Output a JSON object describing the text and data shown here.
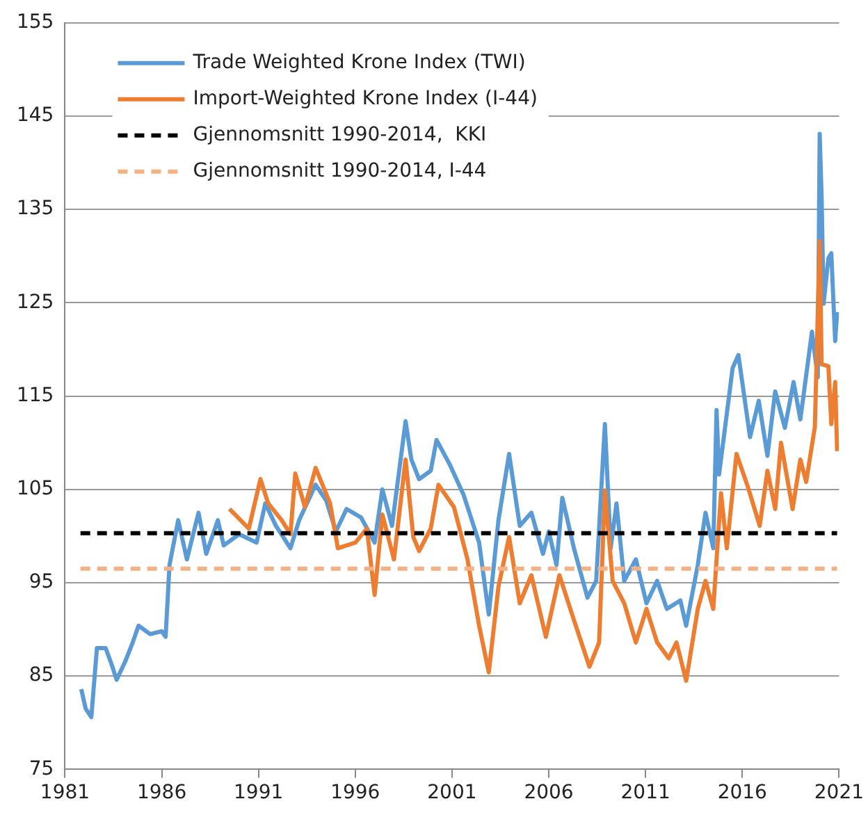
{
  "chart_data": {
    "type": "line",
    "xlim": [
      1981,
      2021
    ],
    "xticks": [
      1981,
      1986,
      1991,
      1996,
      2001,
      2006,
      2011,
      2016,
      2021
    ],
    "ylim": [
      75,
      155
    ],
    "yticks": [
      75,
      85,
      95,
      105,
      115,
      125,
      135,
      145,
      155
    ],
    "grid": "y",
    "legend": "top left",
    "marker": "none",
    "series": [
      {
        "name": "Trade Weighted Krone Index (TWI)",
        "color": "#5b9bd5",
        "line_style": "solid",
        "x": [
          1981.84,
          1982.07,
          1982.36,
          1982.65,
          1983.1,
          1983.4,
          1983.67,
          1984.1,
          1984.5,
          1984.8,
          1985.4,
          1986.0,
          1986.2,
          1986.4,
          1986.85,
          1987.3,
          1987.9,
          1988.3,
          1988.9,
          1989.2,
          1990.0,
          1990.9,
          1991.35,
          1991.9,
          1992.65,
          1993.1,
          1993.95,
          1994.5,
          1995.0,
          1995.55,
          1996.3,
          1997.0,
          1997.4,
          1997.9,
          1998.6,
          1998.9,
          1999.3,
          1999.9,
          2000.2,
          2000.9,
          2001.6,
          2002.4,
          2002.9,
          2003.4,
          2003.95,
          2004.5,
          2005.1,
          2005.7,
          2006.0,
          2006.4,
          2006.7,
          2007.3,
          2008.0,
          2008.45,
          2008.9,
          2009.2,
          2009.5,
          2009.9,
          2010.5,
          2011.05,
          2011.6,
          2012.1,
          2012.8,
          2013.1,
          2013.7,
          2014.1,
          2014.5,
          2014.67,
          2014.8,
          2015.5,
          2015.8,
          2016.4,
          2016.85,
          2017.3,
          2017.7,
          2018.2,
          2018.65,
          2019.0,
          2019.6,
          2019.9,
          2020.0,
          2020.1,
          2020.2,
          2020.45,
          2020.6,
          2020.8,
          2020.9
        ],
        "values": [
          83.6,
          81.5,
          80.6,
          88.0,
          88.0,
          86.3,
          84.6,
          86.5,
          88.6,
          90.4,
          89.5,
          89.8,
          89.2,
          96.9,
          101.7,
          97.5,
          102.5,
          98.1,
          101.7,
          99.0,
          100.2,
          99.3,
          103.5,
          101.1,
          98.7,
          101.7,
          105.5,
          103.8,
          100.5,
          102.9,
          102.0,
          99.3,
          105.0,
          101.1,
          112.3,
          108.2,
          106.1,
          107.0,
          110.3,
          107.6,
          104.4,
          99.3,
          91.6,
          101.7,
          108.8,
          101.1,
          102.5,
          98.1,
          100.5,
          96.9,
          104.1,
          98.7,
          93.4,
          95.2,
          112.0,
          98.7,
          103.5,
          95.2,
          97.5,
          92.8,
          95.2,
          92.2,
          93.1,
          90.4,
          96.9,
          102.5,
          98.7,
          113.5,
          106.6,
          118.0,
          119.4,
          110.6,
          114.5,
          108.6,
          115.5,
          111.6,
          116.5,
          112.5,
          121.9,
          117.0,
          143.1,
          136.2,
          124.9,
          129.8,
          130.3,
          120.9,
          124.0
        ]
      },
      {
        "name": "Import-Weighted Krone Index (I-44)",
        "color": "#ed7d31",
        "line_style": "solid",
        "x": [
          1989.5,
          1990.5,
          1991.1,
          1991.5,
          1992.2,
          1992.65,
          1992.9,
          1993.4,
          1993.95,
          1994.7,
          1995.1,
          1996.0,
          1996.6,
          1997.0,
          1997.4,
          1998.0,
          1998.6,
          1999.0,
          1999.3,
          1999.9,
          2000.3,
          2001.1,
          2001.8,
          2002.4,
          2002.9,
          2003.4,
          2003.95,
          2004.5,
          2005.1,
          2005.85,
          2006.55,
          2007.3,
          2008.1,
          2008.6,
          2008.9,
          2009.3,
          2009.9,
          2010.5,
          2011.05,
          2011.6,
          2012.2,
          2012.6,
          2013.1,
          2013.7,
          2014.1,
          2014.5,
          2014.9,
          2015.2,
          2015.7,
          2016.3,
          2016.9,
          2017.3,
          2017.7,
          2018.0,
          2018.6,
          2019.0,
          2019.3,
          2019.75,
          2020.0,
          2020.1,
          2020.45,
          2020.6,
          2020.8,
          2020.9
        ],
        "values": [
          102.9,
          100.8,
          106.1,
          103.5,
          101.7,
          100.2,
          106.7,
          103.1,
          107.3,
          103.5,
          98.7,
          99.3,
          100.8,
          93.7,
          102.3,
          97.5,
          108.2,
          99.9,
          98.4,
          100.8,
          105.5,
          103.1,
          97.5,
          90.4,
          85.4,
          94.6,
          99.9,
          92.8,
          95.8,
          89.2,
          95.8,
          91.0,
          86.0,
          88.6,
          104.9,
          95.2,
          92.8,
          88.6,
          92.2,
          88.6,
          86.9,
          88.6,
          84.5,
          92.2,
          95.2,
          92.2,
          104.6,
          98.7,
          108.8,
          105.2,
          101.1,
          107.0,
          102.9,
          110.0,
          102.9,
          108.2,
          105.8,
          111.7,
          131.6,
          118.4,
          118.2,
          112.0,
          116.5,
          109.1
        ]
      },
      {
        "name": "Gjennomsnitt 1990-2014,  KKI",
        "color": "#000000",
        "line_style": "dashed",
        "x": [
          1981.8,
          2020.9
        ],
        "values": [
          100.3,
          100.3
        ]
      },
      {
        "name": "Gjennomsnitt 1990-2014, I-44",
        "color": "#f4b183",
        "line_style": "dashed",
        "x": [
          1981.8,
          2020.9
        ],
        "values": [
          96.5,
          96.5
        ]
      }
    ]
  }
}
